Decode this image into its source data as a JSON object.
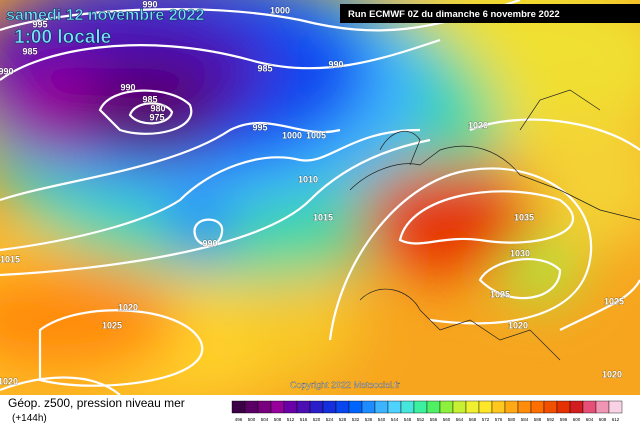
{
  "header": {
    "date": "samedi 12 novembre 2022",
    "time": "1:00 locale",
    "run": "Run ECMWF 0Z du dimanche 6 novembre 2022"
  },
  "isobar_labels": [
    "990",
    "1000",
    "995",
    "985",
    "990",
    "985",
    "990",
    "990",
    "985",
    "980",
    "975",
    "995",
    "1000",
    "1005",
    "1010",
    "1015",
    "990",
    "1015",
    "1020",
    "1035",
    "1030",
    "1025",
    "1020",
    "1025",
    "1020",
    "1025",
    "1020",
    "1020"
  ],
  "copyright": "Copyright 2022 Meteociel.fr",
  "legend": {
    "title": "Géop. z500, pression niveau mer",
    "lead": "(+144h)",
    "scale_labels": [
      "496",
      "500",
      "504",
      "508",
      "512",
      "516",
      "520",
      "524",
      "528",
      "532",
      "536",
      "540",
      "544",
      "548",
      "552",
      "556",
      "560",
      "564",
      "568",
      "572",
      "576",
      "580",
      "584",
      "588",
      "592",
      "596",
      "600",
      "604",
      "608",
      "612"
    ],
    "scale_colors": [
      "#3c0046",
      "#5a0064",
      "#78007f",
      "#96009b",
      "#6a00a8",
      "#4b0fb4",
      "#2a1ec8",
      "#1430dc",
      "#0a46f0",
      "#0064ff",
      "#1e8cff",
      "#3cb4ff",
      "#50d2ff",
      "#46e6dc",
      "#3cf0a0",
      "#50f064",
      "#8cf03c",
      "#c8f032",
      "#f0f032",
      "#ffe628",
      "#ffc81e",
      "#ffaa14",
      "#ff8c0a",
      "#ff6e00",
      "#f05000",
      "#e63200",
      "#d21e1e",
      "#e65078",
      "#f096b4",
      "#fad2e6"
    ]
  }
}
